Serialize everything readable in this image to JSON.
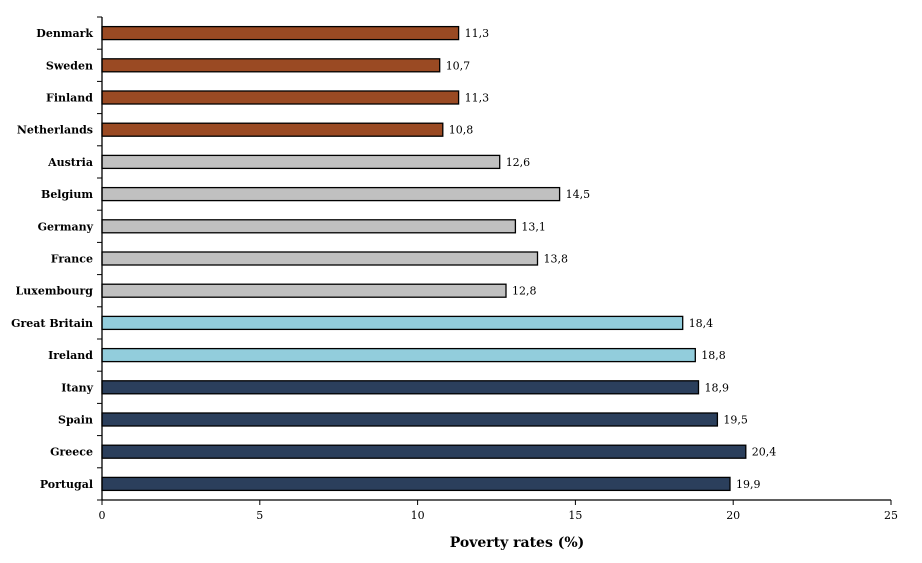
{
  "chart_data": {
    "type": "bar",
    "orientation": "horizontal",
    "categories": [
      "Denmark",
      "Sweden",
      "Finland",
      "Netherlands",
      "Austria",
      "Belgium",
      "Germany",
      "France",
      "Luxembourg",
      "Great Britain",
      "Ireland",
      "Itany",
      "Spain",
      "Greece",
      "Portugal"
    ],
    "values": [
      11.3,
      10.7,
      11.3,
      10.8,
      12.6,
      14.5,
      13.1,
      13.8,
      12.8,
      18.4,
      18.8,
      18.9,
      19.5,
      20.4,
      19.9
    ],
    "value_labels": [
      "11,3",
      "10,7",
      "11,3",
      "10,8",
      "12,6",
      "14,5",
      "13,1",
      "13,8",
      "12,8",
      "18,4",
      "18,8",
      "18,9",
      "19,5",
      "20,4",
      "19,9"
    ],
    "bar_colors": [
      "#9a4a23",
      "#9a4a23",
      "#9a4a23",
      "#9a4a23",
      "#c0c0c0",
      "#c0c0c0",
      "#c0c0c0",
      "#c0c0c0",
      "#c0c0c0",
      "#92cddc",
      "#92cddc",
      "#2b3f5c",
      "#2b3f5c",
      "#2b3f5c",
      "#2b3f5c"
    ],
    "xlabel": "Poverty rates (%)",
    "xlim": [
      0,
      25
    ],
    "xticks": [
      0,
      5,
      10,
      15,
      20,
      25
    ],
    "grid": false,
    "legend": "none"
  }
}
